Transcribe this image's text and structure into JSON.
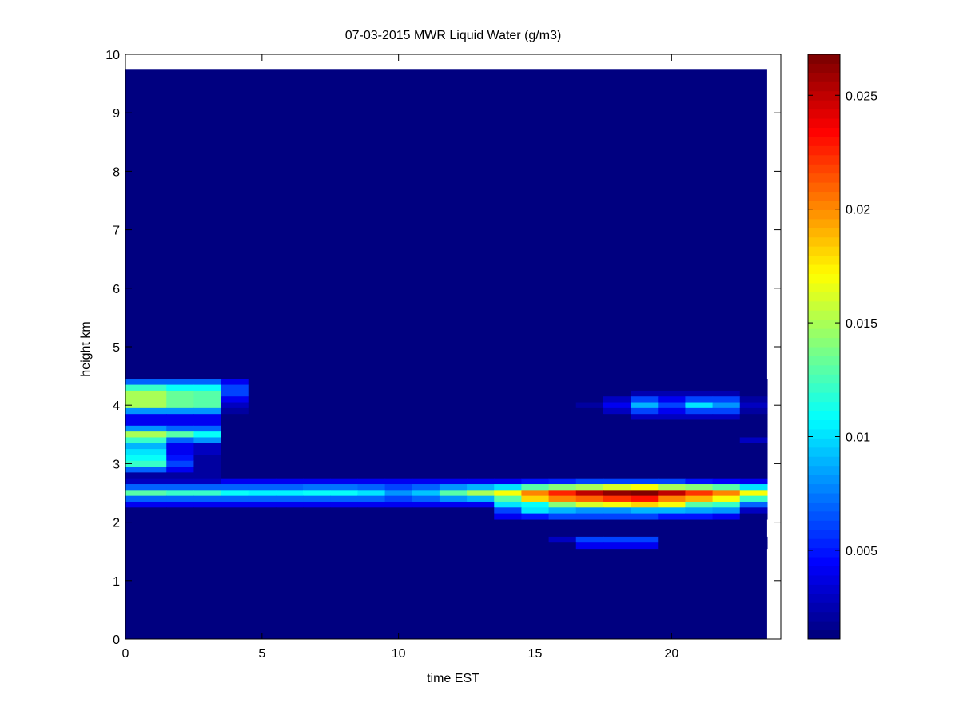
{
  "chart_data": {
    "type": "heatmap",
    "title": "07-03-2015 MWR Liquid Water (g/m3)",
    "xlabel": "time EST",
    "ylabel": "height km",
    "xlim": [
      0,
      24
    ],
    "ylim": [
      0,
      10
    ],
    "x_ticks": [
      0,
      5,
      10,
      15,
      20
    ],
    "y_ticks": [
      0,
      1,
      2,
      3,
      4,
      5,
      6,
      7,
      8,
      9,
      10
    ],
    "x_edges": [
      0,
      1.5,
      2.5,
      3.5,
      4.5,
      5.5,
      6.5,
      7.5,
      8.5,
      9.5,
      10.5,
      11.5,
      12.5,
      13.5,
      14.5,
      15.5,
      16.5,
      17.5,
      18.5,
      19.5,
      20.5,
      21.5,
      22.5,
      23.5
    ],
    "data_top_km": 9.75,
    "row_spacing_km": 0.1,
    "background_value": 0.0012,
    "colormap": "jet",
    "clim": [
      0.0011,
      0.0268
    ],
    "colorbar": {
      "ticks": [
        0.005,
        0.01,
        0.015,
        0.02,
        0.025
      ],
      "tick_labels": [
        "0.005",
        "0.01",
        "0.015",
        "0.02",
        "0.025"
      ]
    },
    "rows": [
      {
        "height_km": 4.4,
        "values": [
          0.007,
          0.007,
          0.007,
          0.004,
          0.0012,
          0.0012,
          0.0012,
          0.0012,
          0.0012,
          0.0012,
          0.0012,
          0.0012,
          0.0012,
          0.0012,
          0.0012,
          0.0012,
          0.0012,
          0.0012,
          0.0012,
          0.0012,
          0.0012,
          0.0012,
          0.0012
        ]
      },
      {
        "height_km": 4.3,
        "values": [
          0.012,
          0.011,
          0.011,
          0.006,
          0.0012,
          0.0012,
          0.0012,
          0.0012,
          0.0012,
          0.0012,
          0.0012,
          0.0012,
          0.0012,
          0.0012,
          0.0012,
          0.0012,
          0.0012,
          0.0012,
          0.0012,
          0.0012,
          0.0012,
          0.0012,
          0.0012
        ]
      },
      {
        "height_km": 4.2,
        "values": [
          0.015,
          0.0135,
          0.013,
          0.006,
          0.0012,
          0.0012,
          0.0012,
          0.0012,
          0.0012,
          0.0012,
          0.0012,
          0.0012,
          0.0012,
          0.0012,
          0.0012,
          0.0012,
          0.0012,
          0.0012,
          0.0025,
          0.0025,
          0.0025,
          0.0025,
          0.0012
        ]
      },
      {
        "height_km": 4.1,
        "values": [
          0.015,
          0.0135,
          0.013,
          0.004,
          0.0012,
          0.0012,
          0.0012,
          0.0012,
          0.0012,
          0.0012,
          0.0012,
          0.0012,
          0.0012,
          0.0012,
          0.0012,
          0.0012,
          0.0015,
          0.003,
          0.006,
          0.004,
          0.006,
          0.006,
          0.002
        ]
      },
      {
        "height_km": 4.0,
        "values": [
          0.015,
          0.0135,
          0.013,
          0.003,
          0.0012,
          0.0012,
          0.0012,
          0.0012,
          0.0012,
          0.0012,
          0.0012,
          0.0012,
          0.0012,
          0.0012,
          0.0012,
          0.0015,
          0.002,
          0.004,
          0.009,
          0.006,
          0.01,
          0.008,
          0.003
        ]
      },
      {
        "height_km": 3.9,
        "values": [
          0.008,
          0.008,
          0.008,
          0.002,
          0.0012,
          0.0012,
          0.0012,
          0.0012,
          0.0012,
          0.0012,
          0.0012,
          0.0012,
          0.0012,
          0.0012,
          0.0012,
          0.0012,
          0.0015,
          0.003,
          0.006,
          0.004,
          0.006,
          0.006,
          0.002
        ]
      },
      {
        "height_km": 3.8,
        "values": [
          0.004,
          0.004,
          0.004,
          0.0015,
          0.0012,
          0.0012,
          0.0012,
          0.0012,
          0.0012,
          0.0012,
          0.0012,
          0.0012,
          0.0012,
          0.0012,
          0.0012,
          0.0012,
          0.0012,
          0.0012,
          0.003,
          0.003,
          0.003,
          0.003,
          0.0012
        ]
      },
      {
        "height_km": 3.7,
        "values": [
          0.004,
          0.004,
          0.004,
          0.0012,
          0.0012,
          0.0012,
          0.0012,
          0.0012,
          0.0012,
          0.0012,
          0.0012,
          0.0012,
          0.0012,
          0.0012,
          0.0012,
          0.0012,
          0.0012,
          0.0012,
          0.0012,
          0.0012,
          0.0012,
          0.0012,
          0.0012
        ]
      },
      {
        "height_km": 3.6,
        "values": [
          0.008,
          0.007,
          0.007,
          0.0012,
          0.0012,
          0.0012,
          0.0012,
          0.0012,
          0.0012,
          0.0012,
          0.0012,
          0.0012,
          0.0012,
          0.0012,
          0.0012,
          0.0012,
          0.0012,
          0.0012,
          0.0012,
          0.0012,
          0.0012,
          0.0012,
          0.0012
        ]
      },
      {
        "height_km": 3.5,
        "values": [
          0.015,
          0.013,
          0.011,
          0.0012,
          0.0012,
          0.0012,
          0.0012,
          0.0012,
          0.0012,
          0.0012,
          0.0012,
          0.0012,
          0.0012,
          0.0012,
          0.0012,
          0.0012,
          0.0012,
          0.0012,
          0.0012,
          0.0012,
          0.0012,
          0.0015,
          0.0015
        ]
      },
      {
        "height_km": 3.4,
        "values": [
          0.012,
          0.007,
          0.008,
          0.0012,
          0.0012,
          0.0012,
          0.0012,
          0.0012,
          0.0012,
          0.0012,
          0.0012,
          0.0012,
          0.0012,
          0.0012,
          0.0012,
          0.0012,
          0.0012,
          0.0012,
          0.0012,
          0.0012,
          0.0012,
          0.0015,
          0.003
        ]
      },
      {
        "height_km": 3.3,
        "values": [
          0.009,
          0.004,
          0.003,
          0.0012,
          0.0012,
          0.0012,
          0.0012,
          0.0012,
          0.0012,
          0.0012,
          0.0012,
          0.0012,
          0.0012,
          0.0012,
          0.0012,
          0.0012,
          0.0012,
          0.0012,
          0.0012,
          0.0012,
          0.0012,
          0.0012,
          0.0012
        ]
      },
      {
        "height_km": 3.2,
        "values": [
          0.01,
          0.004,
          0.003,
          0.0012,
          0.0012,
          0.0012,
          0.0012,
          0.0012,
          0.0012,
          0.0012,
          0.0012,
          0.0012,
          0.0012,
          0.0012,
          0.0012,
          0.0012,
          0.0012,
          0.0012,
          0.0012,
          0.0012,
          0.0012,
          0.0012,
          0.0012
        ]
      },
      {
        "height_km": 3.1,
        "values": [
          0.011,
          0.005,
          0.002,
          0.0012,
          0.0012,
          0.0012,
          0.0012,
          0.0012,
          0.0012,
          0.0012,
          0.0012,
          0.0012,
          0.0012,
          0.0012,
          0.0012,
          0.0012,
          0.0012,
          0.0012,
          0.0012,
          0.0012,
          0.0012,
          0.0012,
          0.0012
        ]
      },
      {
        "height_km": 3.0,
        "values": [
          0.012,
          0.006,
          0.002,
          0.0012,
          0.0012,
          0.0012,
          0.0012,
          0.0012,
          0.0012,
          0.0012,
          0.0012,
          0.0012,
          0.0012,
          0.0012,
          0.0012,
          0.0012,
          0.0012,
          0.0012,
          0.0012,
          0.0012,
          0.0012,
          0.0012,
          0.0012
        ]
      },
      {
        "height_km": 2.9,
        "values": [
          0.007,
          0.004,
          0.002,
          0.0012,
          0.0012,
          0.0012,
          0.0012,
          0.0012,
          0.0012,
          0.0012,
          0.0012,
          0.0012,
          0.0012,
          0.0012,
          0.0012,
          0.0012,
          0.0012,
          0.0012,
          0.0012,
          0.0012,
          0.0012,
          0.0012,
          0.0012
        ]
      },
      {
        "height_km": 2.8,
        "values": [
          0.002,
          0.002,
          0.002,
          0.0012,
          0.0012,
          0.0012,
          0.0012,
          0.0012,
          0.0012,
          0.0012,
          0.0012,
          0.0012,
          0.0012,
          0.0012,
          0.0012,
          0.0012,
          0.0012,
          0.0012,
          0.0012,
          0.0012,
          0.0012,
          0.0012,
          0.0012
        ]
      },
      {
        "height_km": 2.7,
        "values": [
          0.003,
          0.003,
          0.003,
          0.004,
          0.004,
          0.004,
          0.004,
          0.004,
          0.004,
          0.004,
          0.004,
          0.004,
          0.004,
          0.004,
          0.005,
          0.0055,
          0.006,
          0.006,
          0.006,
          0.006,
          0.005,
          0.0045,
          0.004
        ]
      },
      {
        "height_km": 2.6,
        "values": [
          0.007,
          0.007,
          0.007,
          0.007,
          0.007,
          0.007,
          0.0075,
          0.0075,
          0.007,
          0.006,
          0.007,
          0.008,
          0.009,
          0.01,
          0.013,
          0.014,
          0.015,
          0.016,
          0.017,
          0.015,
          0.014,
          0.013,
          0.01
        ]
      },
      {
        "height_km": 2.5,
        "values": [
          0.013,
          0.012,
          0.012,
          0.011,
          0.0105,
          0.0105,
          0.011,
          0.011,
          0.01,
          0.008,
          0.0095,
          0.013,
          0.015,
          0.017,
          0.02,
          0.0225,
          0.025,
          0.026,
          0.0268,
          0.025,
          0.022,
          0.02,
          0.017
        ]
      },
      {
        "height_km": 2.4,
        "values": [
          0.007,
          0.007,
          0.007,
          0.007,
          0.007,
          0.007,
          0.007,
          0.007,
          0.007,
          0.006,
          0.007,
          0.008,
          0.009,
          0.013,
          0.018,
          0.02,
          0.021,
          0.022,
          0.023,
          0.02,
          0.019,
          0.017,
          0.012
        ]
      },
      {
        "height_km": 2.3,
        "values": [
          0.004,
          0.004,
          0.004,
          0.004,
          0.004,
          0.004,
          0.004,
          0.004,
          0.004,
          0.004,
          0.004,
          0.004,
          0.004,
          0.01,
          0.011,
          0.014,
          0.016,
          0.017,
          0.018,
          0.017,
          0.013,
          0.012,
          0.007
        ]
      },
      {
        "height_km": 2.2,
        "values": [
          0.0012,
          0.0012,
          0.0012,
          0.0012,
          0.0012,
          0.0012,
          0.0012,
          0.0012,
          0.0012,
          0.0012,
          0.0012,
          0.0012,
          0.0012,
          0.006,
          0.01,
          0.009,
          0.008,
          0.008,
          0.009,
          0.009,
          0.0085,
          0.008,
          0.003
        ]
      },
      {
        "height_km": 2.1,
        "values": [
          0.0012,
          0.0012,
          0.0012,
          0.0012,
          0.0012,
          0.0012,
          0.0012,
          0.0012,
          0.0012,
          0.0012,
          0.0012,
          0.0012,
          0.0012,
          0.004,
          0.005,
          0.006,
          0.006,
          0.006,
          0.006,
          0.005,
          0.005,
          0.004,
          0.0015
        ]
      },
      {
        "height_km": 1.7,
        "values": [
          0.0012,
          0.0012,
          0.0012,
          0.0012,
          0.0012,
          0.0012,
          0.0012,
          0.0012,
          0.0012,
          0.0012,
          0.0012,
          0.0012,
          0.0012,
          0.0012,
          0.0012,
          0.003,
          0.006,
          0.006,
          0.006,
          0.0015,
          0.0012,
          0.0012,
          0.0012
        ]
      },
      {
        "height_km": 1.6,
        "values": [
          0.0012,
          0.0012,
          0.0012,
          0.0012,
          0.0012,
          0.0012,
          0.0012,
          0.0012,
          0.0012,
          0.0012,
          0.0012,
          0.0012,
          0.0012,
          0.0012,
          0.0012,
          0.0012,
          0.004,
          0.004,
          0.004,
          0.0012,
          0.0012,
          0.0012,
          0.0012
        ]
      }
    ]
  }
}
